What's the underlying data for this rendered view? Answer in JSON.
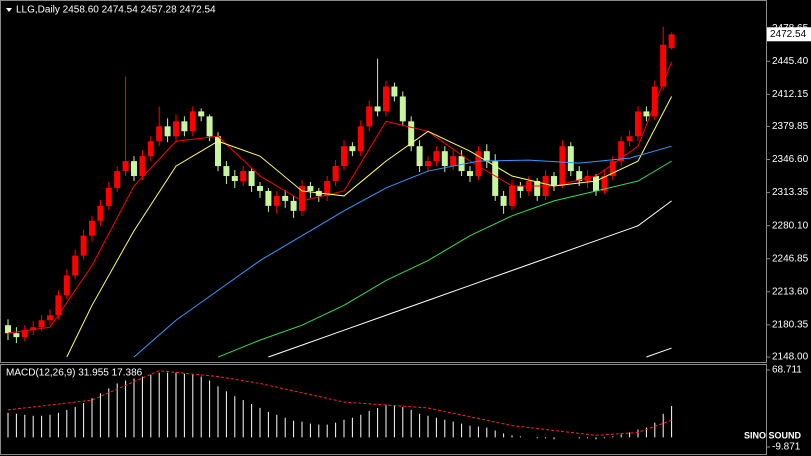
{
  "chart_data": {
    "type": "candlestick",
    "title": "LLG,Daily  2458.60 2474.54 2457.28 2472.54",
    "up_color": "#ff0000",
    "down_color": "#c8f5a0",
    "open": [
      2180,
      2172,
      2168,
      2175,
      2178,
      2185,
      2190,
      2210,
      2230,
      2250,
      2270,
      2285,
      2300,
      2318,
      2335,
      2345,
      2330,
      2350,
      2365,
      2380,
      2370,
      2385,
      2375,
      2395,
      2390,
      2370,
      2340,
      2330,
      2325,
      2335,
      2320,
      2315,
      2300,
      2310,
      2305,
      2295,
      2320,
      2315,
      2310,
      2325,
      2340,
      2360,
      2355,
      2380,
      2400,
      2395,
      2420,
      2410,
      2385,
      2360,
      2340,
      2345,
      2355,
      2340,
      2350,
      2335,
      2330,
      2355,
      2345,
      2310,
      2300,
      2320,
      2315,
      2325,
      2310,
      2330,
      2320,
      2360,
      2335,
      2325,
      2330,
      2315,
      2330,
      2345,
      2365,
      2370,
      2395,
      2390,
      2420,
      2458.6
    ],
    "high": [
      2186,
      2178,
      2180,
      2184,
      2190,
      2196,
      2215,
      2236,
      2256,
      2276,
      2290,
      2306,
      2324,
      2340,
      2430,
      2350,
      2356,
      2370,
      2400,
      2388,
      2392,
      2390,
      2400,
      2398,
      2392,
      2374,
      2345,
      2336,
      2340,
      2338,
      2324,
      2318,
      2315,
      2316,
      2310,
      2326,
      2324,
      2318,
      2330,
      2346,
      2366,
      2364,
      2386,
      2406,
      2448,
      2426,
      2424,
      2415,
      2390,
      2366,
      2350,
      2360,
      2360,
      2356,
      2356,
      2340,
      2360,
      2362,
      2352,
      2315,
      2326,
      2324,
      2330,
      2328,
      2336,
      2334,
      2366,
      2364,
      2340,
      2336,
      2332,
      2336,
      2350,
      2370,
      2376,
      2400,
      2400,
      2426,
      2480,
      2474.54
    ],
    "low": [
      2165,
      2162,
      2164,
      2170,
      2174,
      2180,
      2186,
      2206,
      2226,
      2246,
      2264,
      2280,
      2296,
      2314,
      2330,
      2325,
      2326,
      2345,
      2360,
      2364,
      2364,
      2370,
      2370,
      2385,
      2365,
      2335,
      2322,
      2318,
      2320,
      2314,
      2308,
      2294,
      2292,
      2298,
      2288,
      2290,
      2308,
      2304,
      2305,
      2320,
      2336,
      2350,
      2350,
      2375,
      2390,
      2390,
      2405,
      2380,
      2355,
      2334,
      2334,
      2340,
      2334,
      2336,
      2330,
      2324,
      2326,
      2338,
      2305,
      2292,
      2296,
      2308,
      2310,
      2305,
      2306,
      2315,
      2318,
      2330,
      2320,
      2318,
      2310,
      2312,
      2326,
      2340,
      2360,
      2365,
      2385,
      2386,
      2416,
      2457.28
    ],
    "close": [
      2172,
      2168,
      2175,
      2178,
      2185,
      2190,
      2210,
      2230,
      2250,
      2270,
      2285,
      2300,
      2318,
      2335,
      2345,
      2330,
      2350,
      2365,
      2380,
      2370,
      2385,
      2375,
      2395,
      2390,
      2370,
      2340,
      2330,
      2325,
      2335,
      2320,
      2315,
      2300,
      2310,
      2305,
      2295,
      2320,
      2315,
      2310,
      2325,
      2340,
      2360,
      2355,
      2380,
      2400,
      2395,
      2420,
      2410,
      2385,
      2360,
      2340,
      2345,
      2355,
      2340,
      2350,
      2335,
      2330,
      2355,
      2345,
      2310,
      2300,
      2320,
      2315,
      2325,
      2310,
      2330,
      2320,
      2360,
      2335,
      2325,
      2330,
      2315,
      2330,
      2345,
      2365,
      2370,
      2395,
      2390,
      2420,
      2462,
      2472.54
    ],
    "ylim": [
      2143,
      2504
    ],
    "yticks": [
      2478.65,
      {
        "value": 2445.4,
        "label": "2445.40"
      },
      2412.15,
      2379.85,
      {
        "value": 2346.6,
        "label": "2346.60"
      },
      2313.35,
      {
        "value": 2280.1,
        "label": "2280.10"
      },
      2246.85,
      {
        "value": 2213.6,
        "label": "2213.60"
      },
      2180.35,
      {
        "value": 2148,
        "label": "2148.00"
      }
    ],
    "lines": [
      {
        "color": "#ff0000",
        "x": [
          0,
          5,
          10,
          15,
          20,
          25,
          30,
          35,
          40,
          45,
          50,
          55,
          60,
          65,
          70,
          75,
          79
        ],
        "values": [
          2172,
          2178,
          2240,
          2320,
          2365,
          2370,
          2330,
          2305,
          2315,
          2385,
          2375,
          2345,
          2320,
          2320,
          2330,
          2360,
          2445
        ]
      },
      {
        "color": "#ffff66",
        "x": [
          7,
          10,
          15,
          20,
          25,
          30,
          35,
          40,
          45,
          50,
          55,
          60,
          65,
          70,
          75,
          79
        ],
        "values": [
          2148,
          2200,
          2275,
          2340,
          2365,
          2350,
          2315,
          2310,
          2345,
          2375,
          2355,
          2330,
          2320,
          2325,
          2345,
          2410
        ]
      },
      {
        "color": "#3399ff",
        "x": [
          15,
          20,
          25,
          30,
          35,
          40,
          45,
          50,
          56,
          62,
          68,
          74,
          79
        ],
        "values": [
          2148,
          2185,
          2215,
          2245,
          2270,
          2295,
          2318,
          2335,
          2345,
          2346,
          2343,
          2348,
          2360
        ]
      },
      {
        "color": "#33dd55",
        "x": [
          25,
          30,
          35,
          40,
          45,
          50,
          55,
          60,
          65,
          70,
          75,
          79
        ],
        "values": [
          2148,
          2165,
          2180,
          2200,
          2225,
          2245,
          2270,
          2290,
          2305,
          2315,
          2325,
          2345
        ]
      },
      {
        "color": "#ffffff",
        "x": [
          31,
          35,
          40,
          45,
          50,
          55,
          60,
          65,
          70,
          75,
          79
        ],
        "values": [
          2148,
          2160,
          2175,
          2190,
          2205,
          2220,
          2235,
          2250,
          2265,
          2280,
          2305
        ]
      },
      {
        "color": "#ffffff",
        "x": [
          76,
          79
        ],
        "values": [
          2148,
          2157
        ]
      }
    ],
    "macd": {
      "label": "MACD(12,26,9) 31.955 17.386",
      "color": "#ffffff",
      "signal_color": "#ff2222",
      "values": [
        25,
        24,
        23,
        22,
        22,
        23,
        25,
        28,
        31,
        35,
        40,
        45,
        50,
        55,
        58,
        60,
        62,
        64,
        66,
        66,
        66,
        65,
        64,
        62,
        58,
        52,
        47,
        42,
        38,
        34,
        30,
        26,
        23,
        20,
        17,
        16,
        14,
        13,
        13,
        15,
        18,
        20,
        23,
        27,
        30,
        33,
        33,
        31,
        28,
        24,
        22,
        20,
        18,
        16,
        14,
        12,
        11,
        10,
        7,
        4,
        2,
        1,
        0,
        -1,
        -1,
        -2,
        0,
        0,
        -1,
        -1,
        -2,
        -1,
        1,
        3,
        5,
        8,
        10,
        15,
        24,
        31.955
      ],
      "signal_x": [
        0,
        10,
        18,
        25,
        30,
        40,
        50,
        60,
        70,
        75,
        79
      ],
      "signal": [
        28,
        38,
        68,
        62,
        55,
        36,
        30,
        12,
        2,
        5,
        17.386
      ],
      "ylim": [
        -13.95,
        72.8
      ],
      "yticks": [
        68.711,
        -9.871
      ]
    },
    "watermark": "SINO SOUND"
  }
}
